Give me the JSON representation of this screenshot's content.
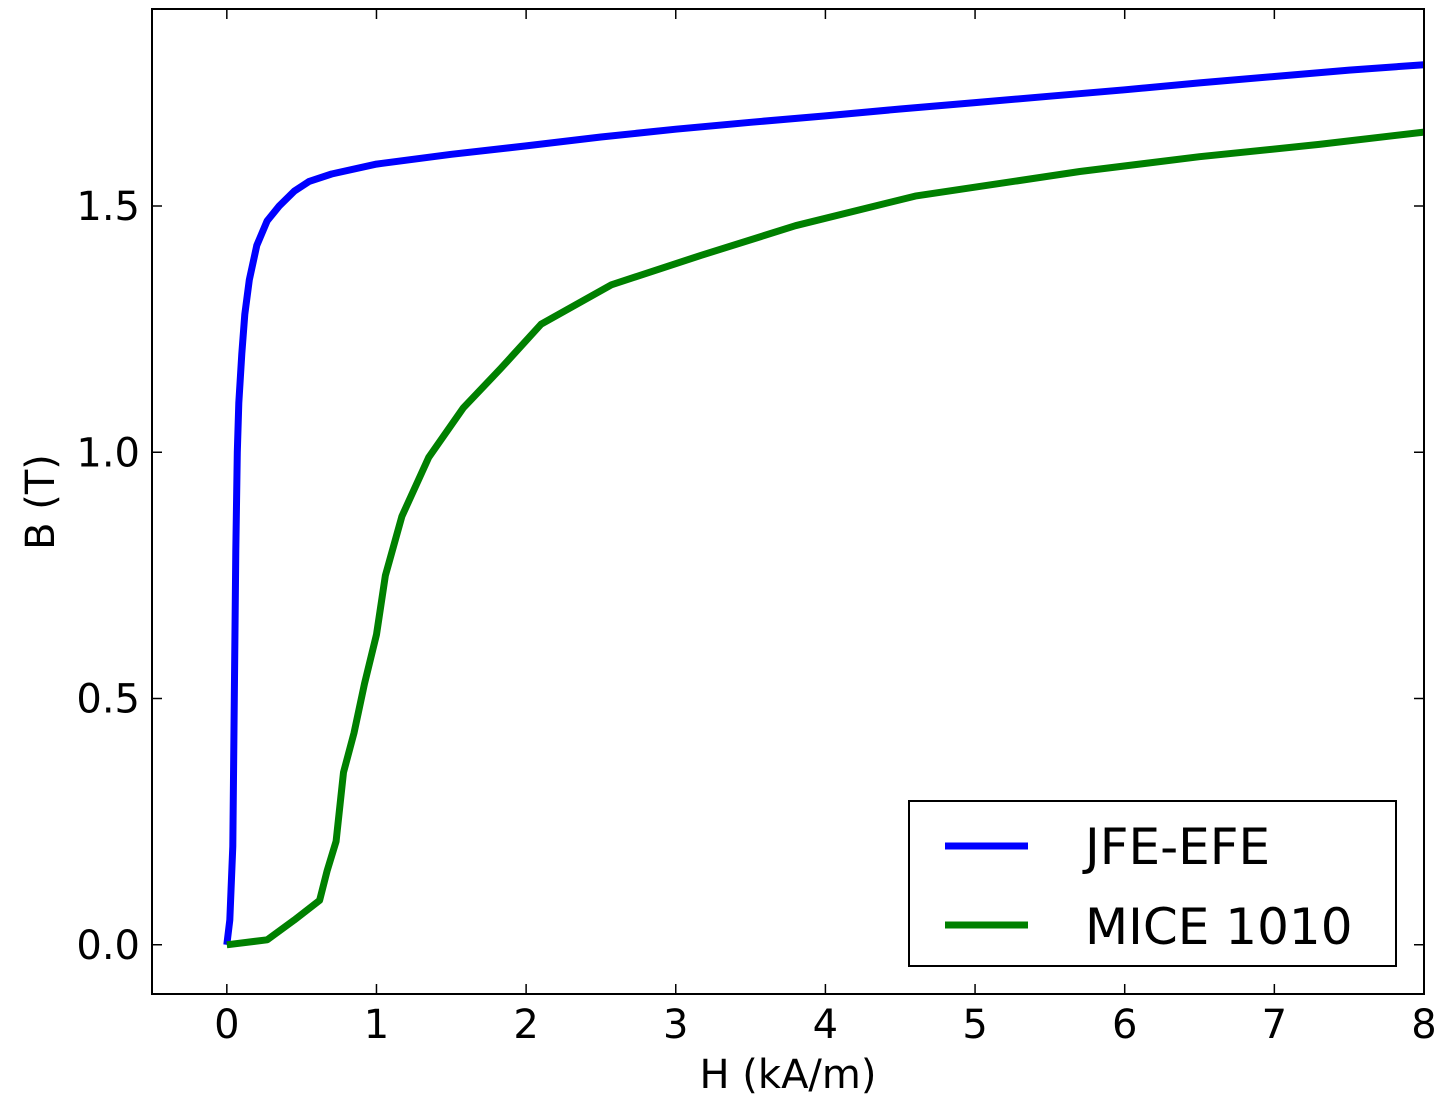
{
  "chart_data": {
    "type": "line",
    "title": "",
    "xlabel": "H (kA/m)",
    "ylabel": "B (T)",
    "xlim": [
      -0.5,
      8
    ],
    "ylim": [
      -0.1,
      1.9
    ],
    "xticks": [
      0,
      1,
      2,
      3,
      4,
      5,
      6,
      7,
      8
    ],
    "xtick_labels": [
      "0",
      "1",
      "2",
      "3",
      "4",
      "5",
      "6",
      "7",
      "8"
    ],
    "yticks": [
      0.0,
      0.5,
      1.0,
      1.5
    ],
    "ytick_labels": [
      "0.0",
      "0.5",
      "1.0",
      "1.5"
    ],
    "grid": false,
    "legend_position": "bottom-right",
    "series": [
      {
        "name": "JFE-EFE",
        "color": "#0000ff",
        "points": [
          [
            0,
            0
          ],
          [
            0.02,
            0.05
          ],
          [
            0.04,
            0.2
          ],
          [
            0.05,
            0.5
          ],
          [
            0.06,
            0.8
          ],
          [
            0.07,
            1.0
          ],
          [
            0.08,
            1.1
          ],
          [
            0.1,
            1.2
          ],
          [
            0.12,
            1.28
          ],
          [
            0.15,
            1.35
          ],
          [
            0.2,
            1.42
          ],
          [
            0.27,
            1.47
          ],
          [
            0.35,
            1.5
          ],
          [
            0.45,
            1.53
          ],
          [
            0.55,
            1.55
          ],
          [
            0.7,
            1.565
          ],
          [
            1.0,
            1.585
          ],
          [
            1.5,
            1.605
          ],
          [
            2.0,
            1.622
          ],
          [
            2.5,
            1.64
          ],
          [
            3.0,
            1.656
          ],
          [
            3.5,
            1.67
          ],
          [
            4.0,
            1.683
          ],
          [
            4.5,
            1.697
          ],
          [
            5.0,
            1.71
          ],
          [
            5.5,
            1.723
          ],
          [
            6.0,
            1.736
          ],
          [
            6.5,
            1.75
          ],
          [
            7.0,
            1.763
          ],
          [
            7.5,
            1.776
          ],
          [
            8.0,
            1.787
          ]
        ]
      },
      {
        "name": "MICE 1010",
        "color": "#008000",
        "points": [
          [
            0,
            0
          ],
          [
            0.27,
            0.01
          ],
          [
            0.45,
            0.05
          ],
          [
            0.62,
            0.09
          ],
          [
            0.67,
            0.15
          ],
          [
            0.73,
            0.21
          ],
          [
            0.78,
            0.35
          ],
          [
            0.85,
            0.43
          ],
          [
            0.92,
            0.53
          ],
          [
            1.0,
            0.63
          ],
          [
            1.06,
            0.75
          ],
          [
            1.17,
            0.87
          ],
          [
            1.35,
            0.99
          ],
          [
            1.58,
            1.09
          ],
          [
            1.83,
            1.17
          ],
          [
            2.1,
            1.26
          ],
          [
            2.57,
            1.34
          ],
          [
            3.17,
            1.4
          ],
          [
            3.8,
            1.46
          ],
          [
            4.6,
            1.52
          ],
          [
            5.7,
            1.57
          ],
          [
            6.5,
            1.6
          ],
          [
            7.3,
            1.625
          ],
          [
            8.0,
            1.65
          ]
        ]
      }
    ]
  }
}
